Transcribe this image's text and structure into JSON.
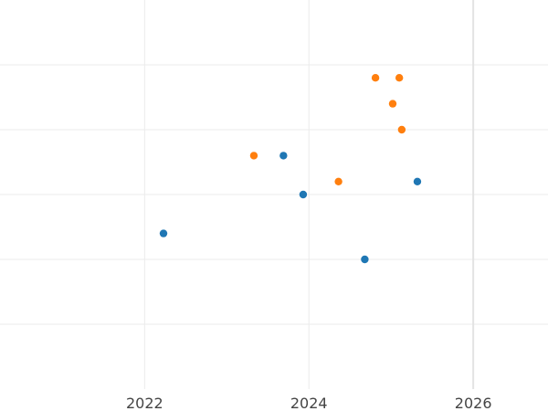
{
  "chart_data": {
    "type": "scatter",
    "title": "",
    "xlabel": "",
    "ylabel": "",
    "xlim": [
      2020.24,
      2026.91
    ],
    "ylim": [
      0,
      6
    ],
    "x_ticks": [
      2022,
      2024,
      2026
    ],
    "x_tick_labels": [
      "2022",
      "2024",
      "2026"
    ],
    "y_gridlines": [
      1,
      2,
      3,
      4,
      5
    ],
    "y_tick_labels_shown": false,
    "grid": true,
    "legend": "none",
    "series": [
      {
        "color": "#1f77b4",
        "points": [
          {
            "x": 2022.23,
            "y": 2.4
          },
          {
            "x": 2023.69,
            "y": 3.6
          },
          {
            "x": 2023.93,
            "y": 3.0
          },
          {
            "x": 2024.68,
            "y": 2.0
          },
          {
            "x": 2025.32,
            "y": 3.2
          }
        ]
      },
      {
        "color": "#ff7f0e",
        "points": [
          {
            "x": 2023.33,
            "y": 3.6
          },
          {
            "x": 2024.36,
            "y": 3.2
          },
          {
            "x": 2024.81,
            "y": 4.8
          },
          {
            "x": 2025.1,
            "y": 4.8
          },
          {
            "x": 2025.02,
            "y": 4.4
          },
          {
            "x": 2025.13,
            "y": 4.0
          }
        ]
      }
    ]
  }
}
